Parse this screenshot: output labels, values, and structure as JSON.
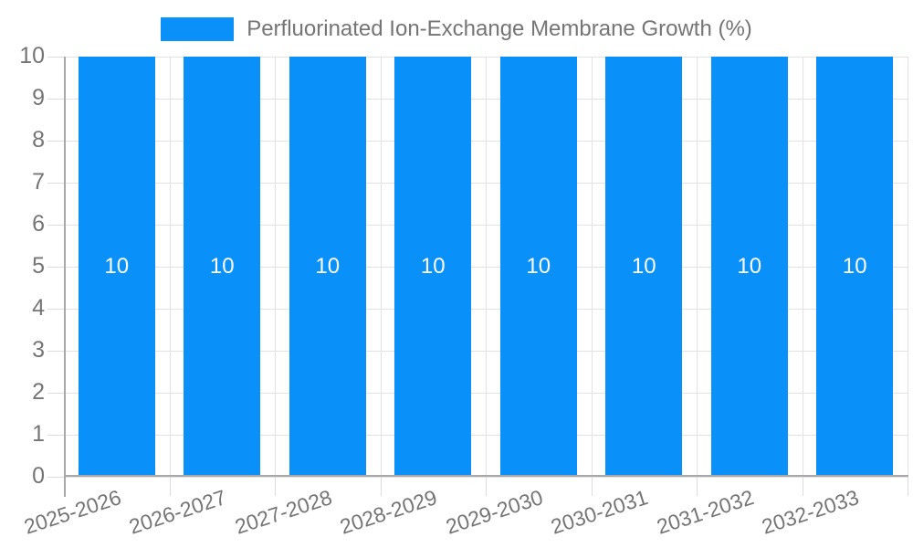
{
  "chart_data": {
    "type": "bar",
    "title": "Perfluorinated Ion-Exchange Membrane Growth (%)",
    "categories": [
      "2025-2026",
      "2026-2027",
      "2027-2028",
      "2028-2029",
      "2029-2030",
      "2030-2031",
      "2031-2032",
      "2032-2033"
    ],
    "values": [
      10,
      10,
      10,
      10,
      10,
      10,
      10,
      10
    ],
    "bar_labels": [
      "10",
      "10",
      "10",
      "10",
      "10",
      "10",
      "10",
      "10"
    ],
    "xlabel": "",
    "ylabel": "",
    "ylim": [
      0,
      10
    ],
    "y_ticks": [
      0,
      1,
      2,
      3,
      4,
      5,
      6,
      7,
      8,
      9,
      10
    ],
    "grid": "on",
    "legend_position": "top-center",
    "colors": {
      "bar": "#0991f9",
      "grid": "#e2e2e2",
      "axis": "#a8a8a8",
      "tick_label": "#757575",
      "legend_label": "#757575",
      "bar_label": "#ffffff",
      "background": "#ffffff"
    }
  }
}
